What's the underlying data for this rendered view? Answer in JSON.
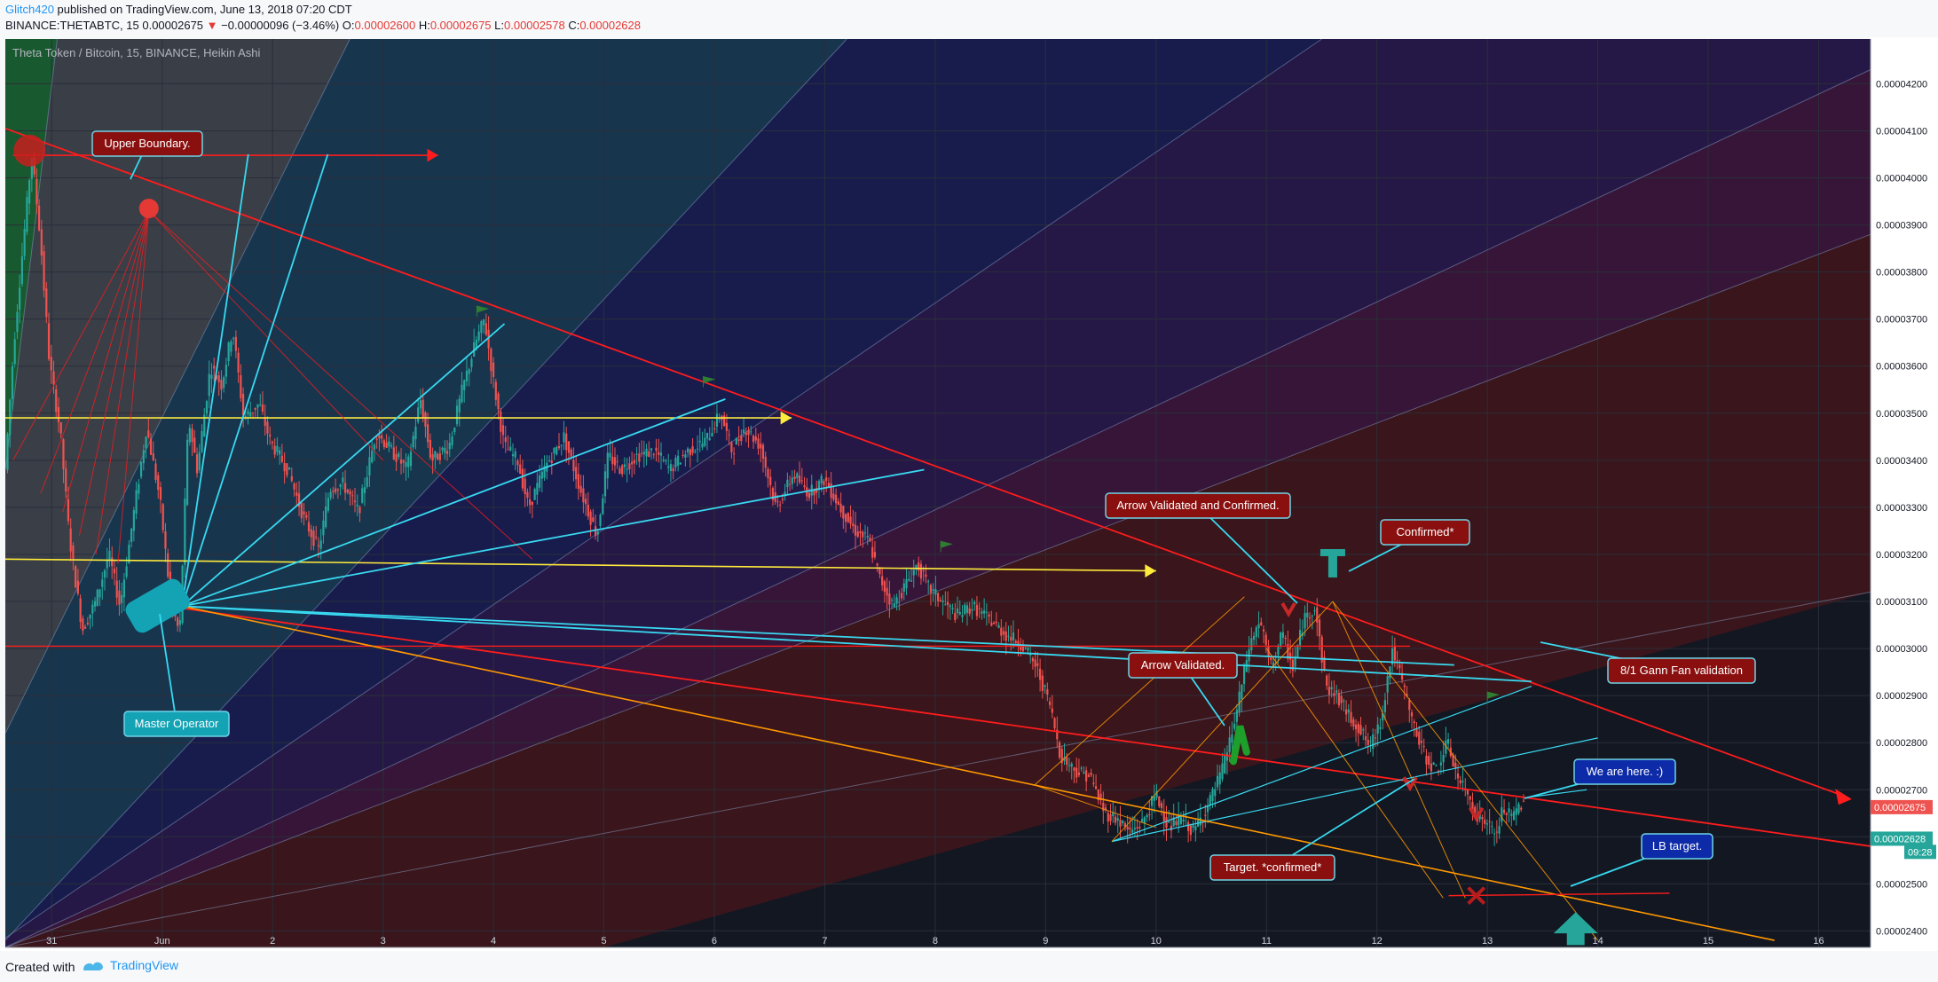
{
  "header": {
    "author": "Glitch420",
    "published": " published on TradingView.com, June 13, 2018 07:20 CDT",
    "symbol": "BINANCE:THETABTC, 15",
    "last": "0.00002675",
    "change_arrow": "▼",
    "change": "−0.00000096 (−3.46%)",
    "o_label": "O:",
    "o_value": "0.00002600",
    "h_label": "H:",
    "h_value": "0.00002675",
    "l_label": "L:",
    "l_value": "0.00002578",
    "c_label": "C:",
    "c_value": "0.00002628"
  },
  "footer": {
    "created_with": "Created with",
    "brand": "TradingView"
  },
  "colors": {
    "background": "#131722",
    "candle_up": "#26a69a",
    "candle_down": "#ef5350",
    "red_line": "#ff1c1c",
    "cyan_line": "#38d9f0",
    "yellow_line": "#ffeb3b",
    "orange_line": "#ff9800",
    "label_red": "#8a1010",
    "label_cyan": "#13a3b5",
    "label_blue": "#0d2aa8",
    "price_red_tag": "#ef5350",
    "price_green_tag": "#26a69a"
  },
  "chart_data": {
    "type": "candlestick",
    "title": "Theta Token / Bitcoin, 15, BINANCE, Heikin Ashi",
    "x_ticks": [
      "31",
      "Jun",
      "2",
      "3",
      "4",
      "5",
      "6",
      "7",
      "8",
      "9",
      "10",
      "11",
      "12",
      "13",
      "14",
      "15",
      "16"
    ],
    "x_tick_days": [
      -1,
      0,
      1,
      2,
      3,
      4,
      5,
      6,
      7,
      8,
      9,
      10,
      11,
      12,
      13,
      14,
      15
    ],
    "y_ticks": [
      "0.00004200",
      "0.00004100",
      "0.00004000",
      "0.00003900",
      "0.00003800",
      "0.00003700",
      "0.00003600",
      "0.00003500",
      "0.00003400",
      "0.00003300",
      "0.00003200",
      "0.00003100",
      "0.00003000",
      "0.00002900",
      "0.00002800",
      "0.00002700",
      "0.00002600",
      "0.00002500",
      "0.00002400"
    ],
    "y_tick_values": [
      4200,
      4100,
      4000,
      3900,
      3800,
      3700,
      3600,
      3500,
      3400,
      3300,
      3200,
      3100,
      3000,
      2900,
      2800,
      2700,
      2600,
      2500,
      2400
    ],
    "ylim": [
      2365,
      4295
    ],
    "xlim": [
      -1.42,
      15.47
    ],
    "price_tags": [
      {
        "label": "0.00002675",
        "value": 2663,
        "type": "red"
      },
      {
        "label": "0.00002628",
        "value": 2596,
        "type": "green"
      },
      {
        "label": "09:28",
        "value": 2568,
        "type": "green"
      }
    ],
    "price_path": [
      [
        -1.4,
        3380
      ],
      [
        -1.32,
        3650
      ],
      [
        -1.22,
        3900
      ],
      [
        -1.16,
        4050
      ],
      [
        -1.08,
        3870
      ],
      [
        -1.0,
        3610
      ],
      [
        -0.9,
        3460
      ],
      [
        -0.82,
        3240
      ],
      [
        -0.7,
        3040
      ],
      [
        -0.58,
        3100
      ],
      [
        -0.46,
        3200
      ],
      [
        -0.36,
        3090
      ],
      [
        -0.24,
        3280
      ],
      [
        -0.12,
        3470
      ],
      [
        0.0,
        3320
      ],
      [
        0.1,
        3100
      ],
      [
        0.18,
        3030
      ],
      [
        0.26,
        3490
      ],
      [
        0.34,
        3380
      ],
      [
        0.46,
        3600
      ],
      [
        0.56,
        3560
      ],
      [
        0.66,
        3680
      ],
      [
        0.76,
        3490
      ],
      [
        0.9,
        3520
      ],
      [
        1.0,
        3440
      ],
      [
        1.16,
        3380
      ],
      [
        1.3,
        3280
      ],
      [
        1.44,
        3210
      ],
      [
        1.54,
        3340
      ],
      [
        1.66,
        3350
      ],
      [
        1.8,
        3290
      ],
      [
        1.96,
        3460
      ],
      [
        2.1,
        3420
      ],
      [
        2.24,
        3380
      ],
      [
        2.36,
        3530
      ],
      [
        2.46,
        3400
      ],
      [
        2.62,
        3430
      ],
      [
        2.74,
        3550
      ],
      [
        2.86,
        3650
      ],
      [
        2.94,
        3700
      ],
      [
        3.02,
        3570
      ],
      [
        3.12,
        3430
      ],
      [
        3.24,
        3400
      ],
      [
        3.34,
        3300
      ],
      [
        3.5,
        3390
      ],
      [
        3.66,
        3450
      ],
      [
        3.82,
        3330
      ],
      [
        3.96,
        3240
      ],
      [
        4.06,
        3410
      ],
      [
        4.18,
        3380
      ],
      [
        4.32,
        3410
      ],
      [
        4.48,
        3420
      ],
      [
        4.62,
        3380
      ],
      [
        4.78,
        3420
      ],
      [
        4.94,
        3440
      ],
      [
        5.08,
        3500
      ],
      [
        5.18,
        3420
      ],
      [
        5.3,
        3470
      ],
      [
        5.44,
        3430
      ],
      [
        5.58,
        3300
      ],
      [
        5.74,
        3370
      ],
      [
        5.88,
        3330
      ],
      [
        6.02,
        3360
      ],
      [
        6.16,
        3300
      ],
      [
        6.3,
        3250
      ],
      [
        6.42,
        3230
      ],
      [
        6.52,
        3150
      ],
      [
        6.64,
        3090
      ],
      [
        6.74,
        3130
      ],
      [
        6.86,
        3180
      ],
      [
        6.96,
        3130
      ],
      [
        7.08,
        3100
      ],
      [
        7.22,
        3070
      ],
      [
        7.36,
        3090
      ],
      [
        7.52,
        3060
      ],
      [
        7.66,
        3030
      ],
      [
        7.8,
        3010
      ],
      [
        7.94,
        2960
      ],
      [
        8.06,
        2880
      ],
      [
        8.16,
        2770
      ],
      [
        8.3,
        2740
      ],
      [
        8.42,
        2730
      ],
      [
        8.56,
        2650
      ],
      [
        8.66,
        2640
      ],
      [
        8.78,
        2610
      ],
      [
        8.9,
        2630
      ],
      [
        9.02,
        2690
      ],
      [
        9.14,
        2620
      ],
      [
        9.26,
        2640
      ],
      [
        9.36,
        2610
      ],
      [
        9.5,
        2670
      ],
      [
        9.62,
        2740
      ],
      [
        9.74,
        2850
      ],
      [
        9.86,
        3000
      ],
      [
        9.96,
        3060
      ],
      [
        10.06,
        2960
      ],
      [
        10.16,
        3030
      ],
      [
        10.26,
        2960
      ],
      [
        10.36,
        3060
      ],
      [
        10.46,
        3090
      ],
      [
        10.56,
        2920
      ],
      [
        10.66,
        2900
      ],
      [
        10.76,
        2860
      ],
      [
        10.86,
        2830
      ],
      [
        10.96,
        2790
      ],
      [
        11.06,
        2850
      ],
      [
        11.16,
        3000
      ],
      [
        11.26,
        2920
      ],
      [
        11.36,
        2830
      ],
      [
        11.46,
        2770
      ],
      [
        11.56,
        2740
      ],
      [
        11.66,
        2800
      ],
      [
        11.76,
        2720
      ],
      [
        11.84,
        2690
      ],
      [
        11.94,
        2640
      ],
      [
        12.02,
        2630
      ],
      [
        12.1,
        2600
      ],
      [
        12.16,
        2660
      ],
      [
        12.24,
        2640
      ],
      [
        12.34,
        2675
      ]
    ],
    "annotations": [
      {
        "id": "upper",
        "text": "Upper Boundary.",
        "style": "red"
      },
      {
        "id": "master",
        "text": "Master Operator",
        "style": "cyan"
      },
      {
        "id": "avc",
        "text": "Arrow Validated and Confirmed.",
        "style": "red"
      },
      {
        "id": "conf",
        "text": "Confirmed*",
        "style": "red"
      },
      {
        "id": "av",
        "text": "Arrow Validated.",
        "style": "red"
      },
      {
        "id": "gann",
        "text": "8/1 Gann Fan validation",
        "style": "red"
      },
      {
        "id": "here",
        "text": "We are here. :)",
        "style": "blue"
      },
      {
        "id": "lbt",
        "text": "LB target.",
        "style": "blue"
      },
      {
        "id": "tc",
        "text": "Target. *confirmed*",
        "style": "red"
      }
    ]
  }
}
